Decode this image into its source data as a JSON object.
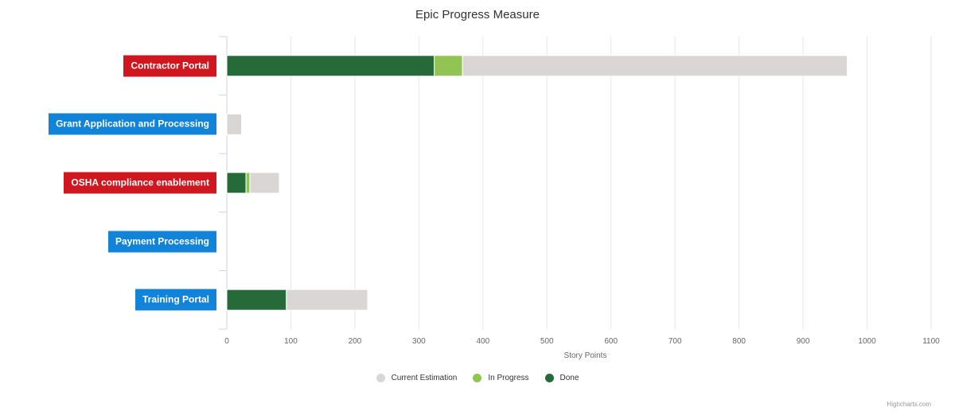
{
  "chart_data": {
    "type": "bar",
    "orientation": "horizontal",
    "stacked": true,
    "title": "Epic Progress Measure",
    "xlabel": "Story Points",
    "categories": [
      "Contractor Portal",
      "Grant Application and Processing",
      "OSHA compliance enablement",
      "Payment Processing",
      "Training Portal"
    ],
    "category_colors": [
      "#d0161f",
      "#1183d8",
      "#d0161f",
      "#1183d8",
      "#1183d8"
    ],
    "series": [
      {
        "name": "Done",
        "color": "#266a3a",
        "values": [
          324,
          0,
          30,
          0,
          93
        ]
      },
      {
        "name": "In Progress",
        "color": "#92c454",
        "values": [
          44,
          0,
          6,
          0,
          0
        ]
      },
      {
        "name": "Current Estimation",
        "color": "#dbd6d6",
        "values": [
          601,
          23,
          46,
          0,
          127
        ]
      }
    ],
    "legend_order": [
      "Current Estimation",
      "In Progress",
      "Done"
    ],
    "xlim": [
      0,
      1100
    ],
    "ticks": [
      0,
      100,
      200,
      300,
      400,
      500,
      600,
      700,
      800,
      900,
      1000,
      1100
    ],
    "grid": true,
    "legend_position": "bottom-center"
  },
  "credits": "Highcharts.com"
}
